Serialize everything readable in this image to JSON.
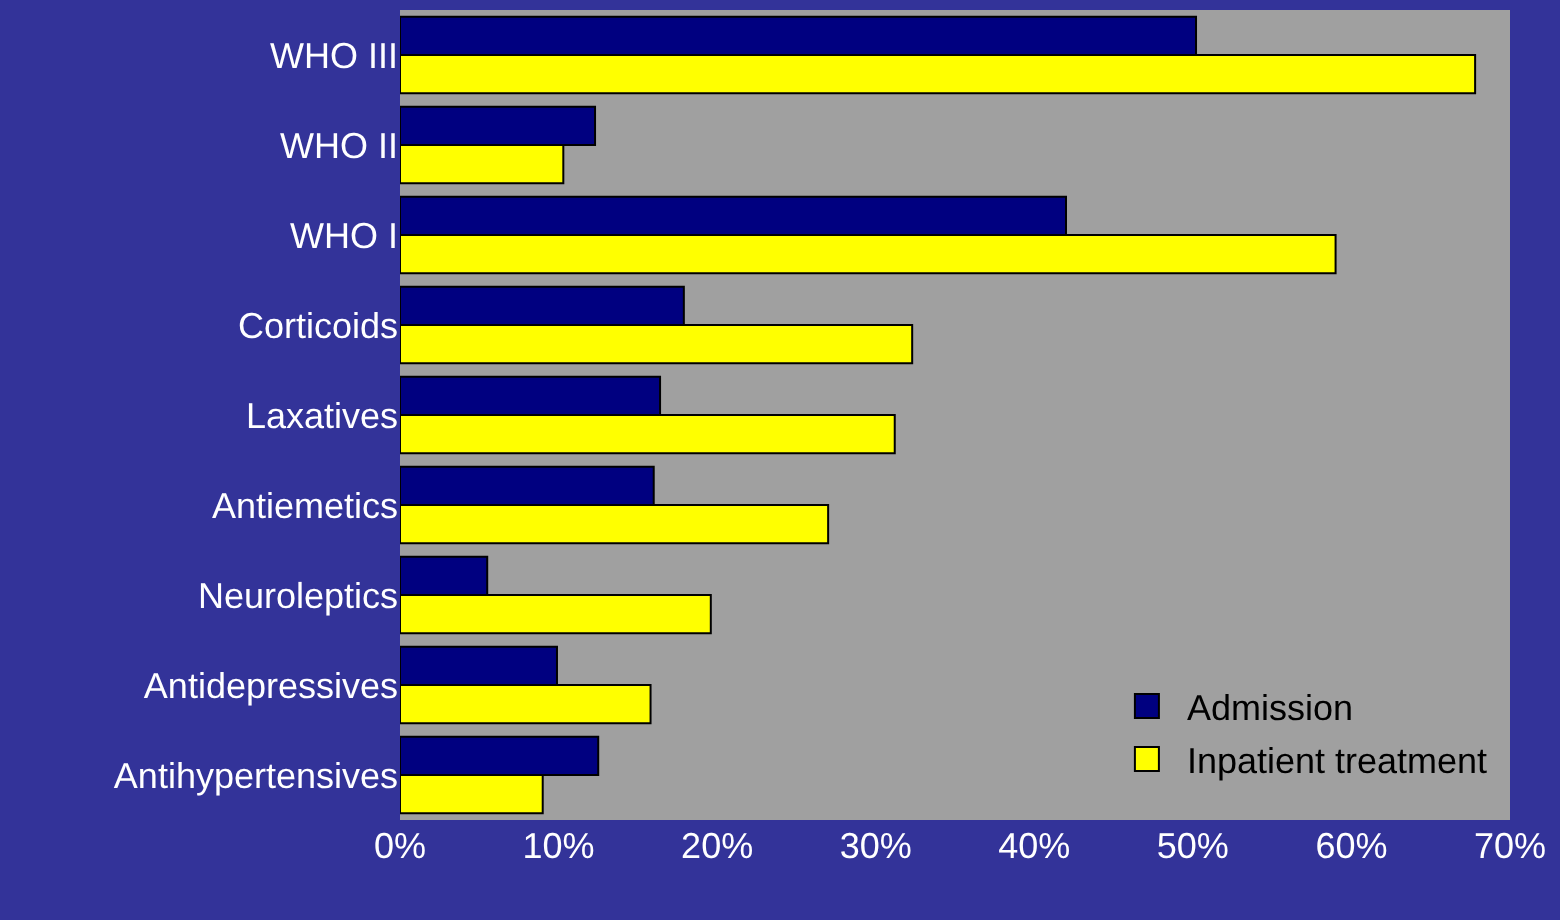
{
  "chart_data": {
    "type": "bar",
    "orientation": "horizontal",
    "categories": [
      "WHO III",
      "WHO II",
      "WHO I",
      "Corticoids",
      "Laxatives",
      "Antiemetics",
      "Neuroleptics",
      "Antidepressives",
      "Antihypertensives"
    ],
    "series": [
      {
        "name": "Admission",
        "color": "#000080",
        "values": [
          50.2,
          12.3,
          42,
          17.9,
          16.4,
          16,
          5.5,
          9.9,
          12.5
        ]
      },
      {
        "name": "Inpatient treatment",
        "color": "#ffff00",
        "values": [
          67.8,
          10.3,
          59,
          32.3,
          31.2,
          27,
          19.6,
          15.8,
          9
        ]
      }
    ],
    "xlim": [
      0,
      70
    ],
    "xticks": [
      {
        "value": 0,
        "label": "0%"
      },
      {
        "value": 10,
        "label": "10%"
      },
      {
        "value": 20,
        "label": "20%"
      },
      {
        "value": 30,
        "label": "30%"
      },
      {
        "value": 40,
        "label": "40%"
      },
      {
        "value": 50,
        "label": "50%"
      },
      {
        "value": 60,
        "label": "60%"
      },
      {
        "value": 70,
        "label": "70%"
      }
    ],
    "grid": false,
    "legend": "bottom right"
  }
}
